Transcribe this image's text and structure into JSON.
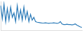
{
  "chart_data": {
    "type": "line",
    "categories": [
      null,
      null,
      null,
      null,
      null,
      null,
      null,
      null,
      null,
      null,
      null,
      null,
      null,
      null,
      null,
      null,
      null,
      null,
      null,
      null,
      null,
      null,
      null,
      null,
      null,
      null,
      null,
      null,
      null,
      null,
      null,
      null,
      null,
      null,
      null,
      null,
      null,
      null,
      null,
      null,
      null,
      null,
      null,
      null,
      null,
      null,
      null,
      null,
      null,
      null
    ],
    "values": [
      85,
      40,
      90,
      30,
      75,
      35,
      80,
      45,
      60,
      30,
      85,
      40,
      70,
      35,
      80,
      40,
      65,
      30,
      55,
      35,
      45,
      30,
      28,
      27,
      26,
      25,
      25,
      26,
      25,
      24,
      25,
      25,
      26,
      25,
      24,
      25,
      30,
      22,
      20,
      20,
      21,
      20,
      20,
      19,
      20,
      22,
      18,
      15,
      12,
      10
    ],
    "color": "#2a7ab8",
    "ylim": [
      0,
      100
    ],
    "grid": false,
    "tick_labels": false
  }
}
